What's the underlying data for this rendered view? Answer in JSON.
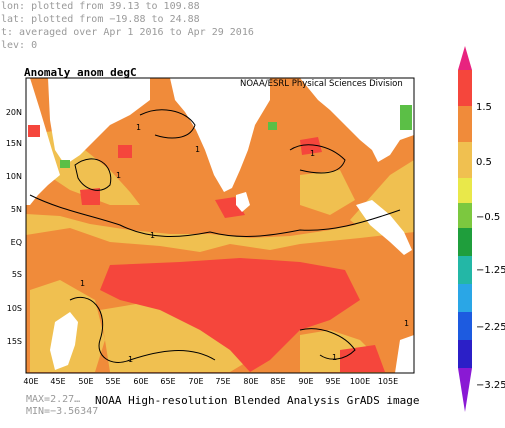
{
  "header": {
    "lon": "lon: plotted from 39.13 to 109.88",
    "lat": "lat: plotted from −19.88 to 24.88",
    "time": "t: averaged over Apr 1 2016 to Apr 29 2016",
    "lev": "lev: 0"
  },
  "map": {
    "title": "Anomaly anom degC",
    "credit": "NOAA/ESRL Physical Sciences Division",
    "lat_ticks": [
      "20N",
      "15N",
      "10N",
      "5N",
      "EQ",
      "5S",
      "10S",
      "15S"
    ],
    "lon_ticks": [
      "40E",
      "45E",
      "50E",
      "55E",
      "60E",
      "65E",
      "70E",
      "75E",
      "80E",
      "85E",
      "90E",
      "95E",
      "100E",
      "105E"
    ],
    "contour_label": "1",
    "colors": {
      "ocean_main": "#f08b3a",
      "ocean_warm": "#f5463c",
      "ocean_cool": "#f0c050",
      "land": "#ffffff",
      "green_high": "#5bbf46"
    }
  },
  "colorbar": {
    "labels": [
      "1.5",
      "0.5",
      "−0.5",
      "−1.25",
      "−2.25",
      "−3.25"
    ]
  },
  "stats": {
    "max": "MAX=2.27…",
    "min": "MIN=−3.56347"
  },
  "footer": {
    "text": "NOAA High-resolution Blended Analysis GrADS image"
  }
}
